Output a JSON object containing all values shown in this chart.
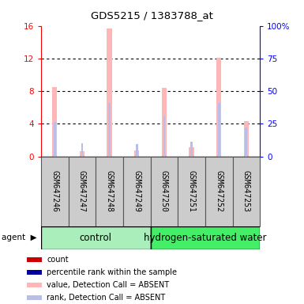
{
  "title": "GDS5215 / 1383788_at",
  "samples": [
    "GSM647246",
    "GSM647247",
    "GSM647248",
    "GSM647249",
    "GSM647250",
    "GSM647251",
    "GSM647252",
    "GSM647253"
  ],
  "value_absent": [
    8.5,
    0.7,
    15.7,
    0.8,
    8.4,
    1.1,
    12.1,
    4.3
  ],
  "rank_absent": [
    4.2,
    1.6,
    6.6,
    1.5,
    5.0,
    1.8,
    6.6,
    3.6
  ],
  "ylim_left": [
    0,
    16
  ],
  "ylim_right": [
    0,
    100
  ],
  "yticks_left": [
    0,
    4,
    8,
    12,
    16
  ],
  "ytick_labels_left": [
    "0",
    "4",
    "8",
    "12",
    "16"
  ],
  "yticks_right": [
    0,
    25,
    50,
    75,
    100
  ],
  "ytick_labels_right": [
    "0",
    "25",
    "50",
    "75",
    "100%"
  ],
  "color_value_absent": "#FFB6B6",
  "color_rank_absent": "#B8BEE8",
  "color_count": "#CC0000",
  "color_rank": "#000099",
  "ctrl_color": "#AAEEBB",
  "hyd_color": "#44EE66",
  "gray_color": "#CCCCCC",
  "legend_items": [
    {
      "label": "count",
      "color": "#CC0000"
    },
    {
      "label": "percentile rank within the sample",
      "color": "#000099"
    },
    {
      "label": "value, Detection Call = ABSENT",
      "color": "#FFB6B6"
    },
    {
      "label": "rank, Detection Call = ABSENT",
      "color": "#B8BEE8"
    }
  ]
}
